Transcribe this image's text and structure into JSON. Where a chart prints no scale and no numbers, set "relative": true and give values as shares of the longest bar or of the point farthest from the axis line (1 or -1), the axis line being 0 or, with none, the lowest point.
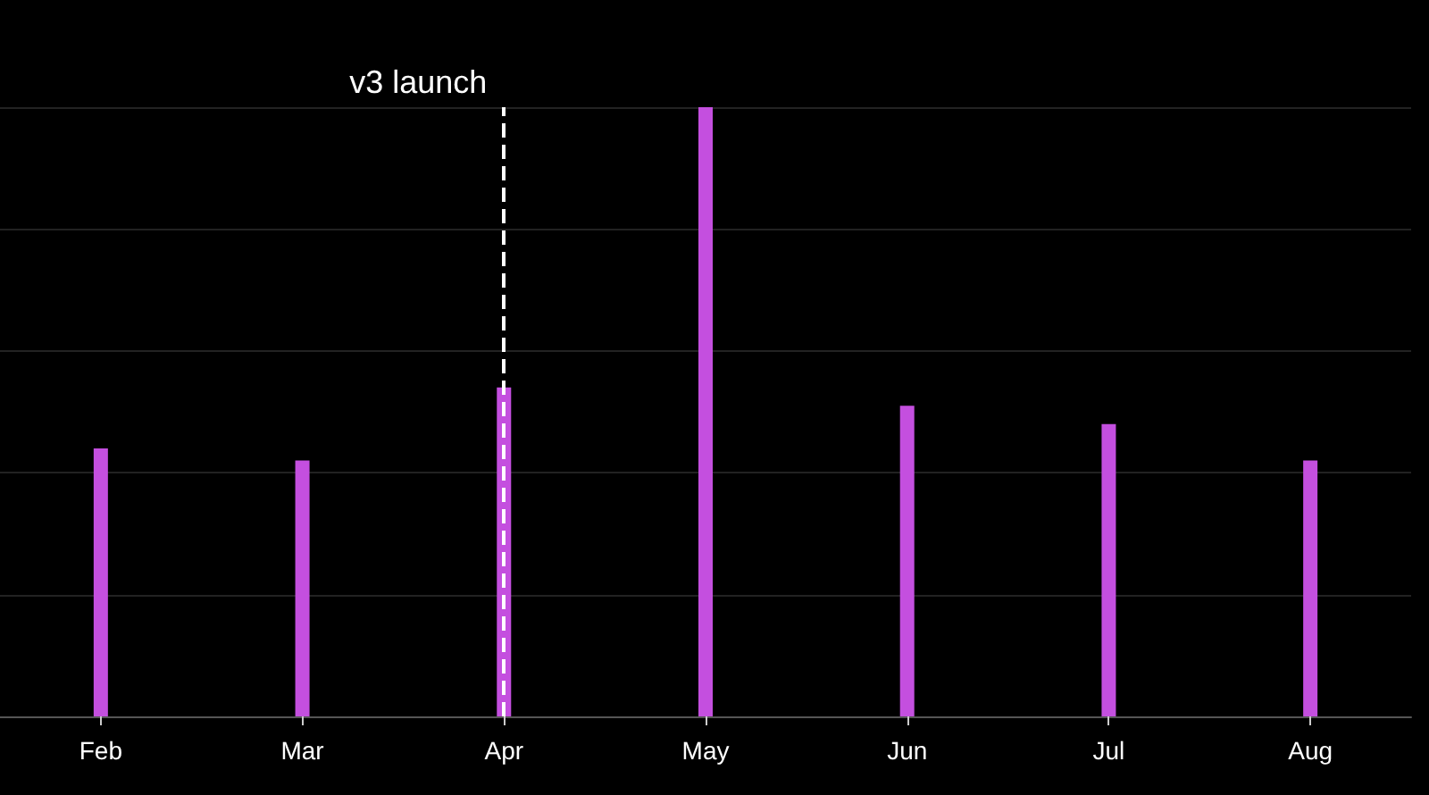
{
  "chart_data": {
    "type": "bar",
    "relative": true,
    "categories": [
      "Feb",
      "Mar",
      "Apr",
      "May",
      "Jun",
      "Jul",
      "Aug"
    ],
    "values": [
      0.44,
      0.42,
      0.54,
      1,
      0.51,
      0.48,
      0.42
    ],
    "color": "#c44fdf",
    "grid": "y",
    "ref_lines": [
      {
        "axis": "x",
        "value": "Apr",
        "label": "v3 launch",
        "color": "#ffffff",
        "line_style": "dashed"
      }
    ]
  }
}
